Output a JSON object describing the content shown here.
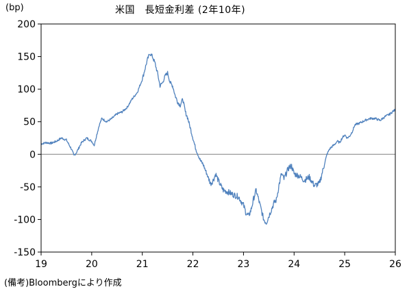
{
  "chart": {
    "unit_label": "(bp)",
    "title": "米国　長短金利差 (2年10年)",
    "note": "(備考)Bloombergにより作成"
  },
  "chart_data": {
    "type": "line",
    "title": "米国　長短金利差 (2年10年)",
    "ylabel": "(bp)",
    "xlabel": "",
    "ylim": [
      -150,
      200
    ],
    "yticks": [
      200,
      150,
      100,
      50,
      0,
      -50,
      -100,
      -150
    ],
    "xlim": [
      19,
      26
    ],
    "xticks": [
      "19",
      "20",
      "21",
      "22",
      "23",
      "24",
      "25",
      "26"
    ],
    "grid": false,
    "zero_line": true,
    "colors": {
      "line": "#4f81bd",
      "zero_line": "#808080",
      "axis": "#000000"
    },
    "series": [
      {
        "x": [
          19.0,
          19.1,
          19.2,
          19.3,
          19.4,
          19.5,
          19.6,
          19.65,
          19.7,
          19.8,
          19.9,
          20.0,
          20.05,
          20.1,
          20.15,
          20.2,
          20.3,
          20.4,
          20.5,
          20.6,
          20.7,
          20.8,
          20.9,
          21.0,
          21.05,
          21.1,
          21.15,
          21.2,
          21.25,
          21.3,
          21.35,
          21.4,
          21.45,
          21.5,
          21.55,
          21.6,
          21.65,
          21.7,
          21.75,
          21.8,
          21.85,
          21.9,
          21.95,
          22.0,
          22.05,
          22.1,
          22.15,
          22.2,
          22.25,
          22.3,
          22.35,
          22.4,
          22.45,
          22.5,
          22.55,
          22.6,
          22.7,
          22.8,
          22.9,
          23.0,
          23.05,
          23.1,
          23.15,
          23.2,
          23.25,
          23.3,
          23.35,
          23.4,
          23.45,
          23.5,
          23.55,
          23.6,
          23.65,
          23.7,
          23.75,
          23.8,
          23.85,
          23.9,
          23.95,
          24.0,
          24.1,
          24.2,
          24.3,
          24.4,
          24.5,
          24.55,
          24.6,
          24.65,
          24.7,
          24.75,
          24.8,
          24.85,
          24.9,
          24.95,
          25.0,
          25.05,
          25.1,
          25.15,
          25.2,
          25.3,
          25.4,
          25.5,
          25.6,
          25.7,
          25.8,
          25.9,
          25.95,
          26.0
        ],
        "y": [
          16,
          18,
          17,
          20,
          25,
          22,
          8,
          -2,
          3,
          18,
          25,
          20,
          14,
          30,
          45,
          55,
          50,
          55,
          62,
          65,
          72,
          85,
          95,
          115,
          130,
          145,
          155,
          150,
          140,
          125,
          105,
          110,
          120,
          125,
          110,
          105,
          90,
          80,
          75,
          85,
          65,
          55,
          40,
          25,
          10,
          0,
          -10,
          -15,
          -25,
          -35,
          -45,
          -40,
          -30,
          -40,
          -48,
          -55,
          -58,
          -62,
          -65,
          -78,
          -90,
          -95,
          -85,
          -68,
          -55,
          -70,
          -85,
          -100,
          -105,
          -95,
          -85,
          -75,
          -70,
          -48,
          -30,
          -38,
          -28,
          -20,
          -18,
          -30,
          -33,
          -40,
          -35,
          -48,
          -45,
          -30,
          -15,
          0,
          8,
          12,
          15,
          20,
          18,
          25,
          30,
          25,
          28,
          35,
          45,
          48,
          52,
          55,
          55,
          52,
          58,
          62,
          66,
          68
        ]
      }
    ]
  }
}
